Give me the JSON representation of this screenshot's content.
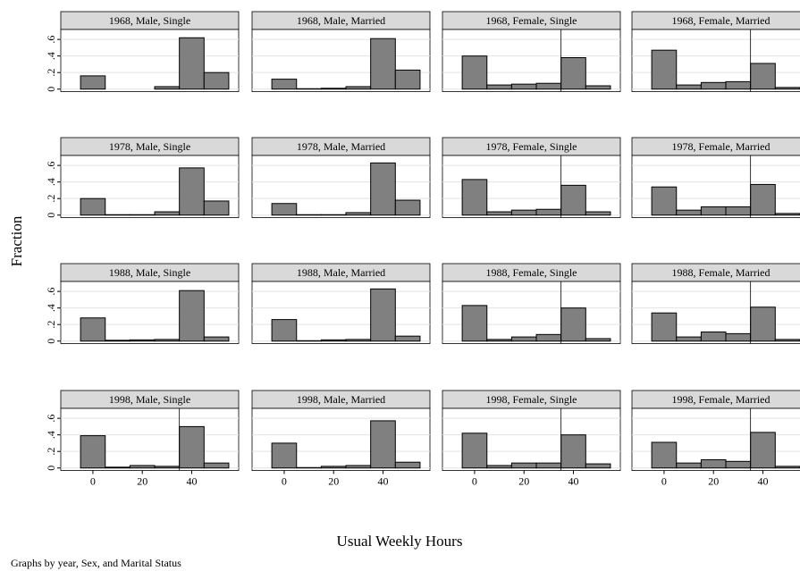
{
  "chart_data": {
    "type": "histogram-grid",
    "ylabel": "Fraction",
    "xlabel": "Usual Weekly Hours",
    "note": "Graphs by year, Sex, and Marital Status",
    "bins": [
      -5,
      5,
      15,
      25,
      35,
      45,
      55
    ],
    "xlim": [
      -13,
      59
    ],
    "ylim": [
      -0.03,
      0.72
    ],
    "xticks": [
      0,
      20,
      40
    ],
    "yticks": [
      {
        "value": 0,
        "label": "0"
      },
      {
        "value": 0.2,
        "label": ".2"
      },
      {
        "value": 0.4,
        "label": ".4"
      },
      {
        "value": 0.6,
        "label": ".6"
      }
    ],
    "grid": true,
    "color": "#808080",
    "panels": [
      {
        "title": "1968, Male, Single",
        "values": [
          0.16,
          0,
          0,
          0.03,
          0.62,
          0.2
        ]
      },
      {
        "title": "1968, Male, Married",
        "values": [
          0.12,
          0.005,
          0.01,
          0.03,
          0.61,
          0.23
        ]
      },
      {
        "title": "1968, Female, Single",
        "values": [
          0.4,
          0.05,
          0.06,
          0.07,
          0.38,
          0.04
        ],
        "vline": 35
      },
      {
        "title": "1968, Female, Married",
        "values": [
          0.47,
          0.05,
          0.08,
          0.09,
          0.31,
          0.02
        ],
        "vline": 35
      },
      {
        "title": "1978, Male, Single",
        "values": [
          0.2,
          0.005,
          0.005,
          0.04,
          0.57,
          0.17
        ]
      },
      {
        "title": "1978, Male, Married",
        "values": [
          0.14,
          0.005,
          0.005,
          0.03,
          0.63,
          0.18
        ]
      },
      {
        "title": "1978, Female, Single",
        "values": [
          0.43,
          0.04,
          0.06,
          0.07,
          0.36,
          0.04
        ],
        "vline": 35
      },
      {
        "title": "1978, Female, Married",
        "values": [
          0.34,
          0.06,
          0.1,
          0.1,
          0.37,
          0.02
        ],
        "vline": 35
      },
      {
        "title": "1988, Male, Single",
        "values": [
          0.28,
          0.01,
          0.015,
          0.02,
          0.61,
          0.05
        ]
      },
      {
        "title": "1988, Male, Married",
        "values": [
          0.26,
          0.005,
          0.015,
          0.02,
          0.63,
          0.06
        ]
      },
      {
        "title": "1988, Female, Single",
        "values": [
          0.43,
          0.02,
          0.05,
          0.08,
          0.4,
          0.03
        ],
        "vline": 35
      },
      {
        "title": "1988, Female, Married",
        "values": [
          0.34,
          0.05,
          0.11,
          0.09,
          0.41,
          0.02
        ],
        "vline": 35
      },
      {
        "title": "1998, Male, Single",
        "values": [
          0.39,
          0.01,
          0.03,
          0.02,
          0.5,
          0.06
        ],
        "vline": 35
      },
      {
        "title": "1998, Male, Married",
        "values": [
          0.3,
          0.005,
          0.02,
          0.03,
          0.57,
          0.07
        ]
      },
      {
        "title": "1998, Female, Single",
        "values": [
          0.42,
          0.03,
          0.06,
          0.06,
          0.4,
          0.05
        ],
        "vline": 35
      },
      {
        "title": "1998, Female, Married",
        "values": [
          0.31,
          0.06,
          0.1,
          0.08,
          0.43,
          0.02
        ],
        "vline": 35
      }
    ]
  }
}
